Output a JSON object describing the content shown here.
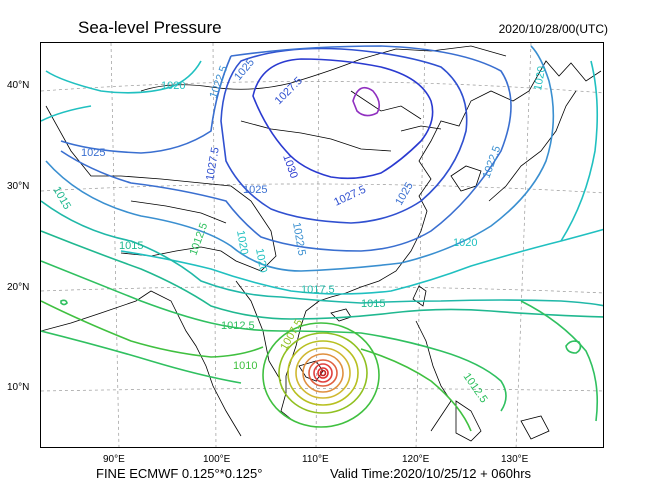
{
  "header": {
    "title": "Sea-level Pressure",
    "datetime": "2020/10/28/00(UTC)"
  },
  "axes": {
    "lat_ticks": [
      "40°N",
      "30°N",
      "20°N",
      "10°N"
    ],
    "lon_ticks": [
      "90°E",
      "100°E",
      "110°E",
      "120°E",
      "130°E"
    ]
  },
  "footer": {
    "model": "FINE ECMWF 0.125°*0.125°",
    "valid_time": "Valid Time:2020/10/25/12 + 060hrs"
  },
  "contour_labels": [
    {
      "text": "1020",
      "color": "#20c0c0"
    },
    {
      "text": "1022.5",
      "color": "#3a8fd0"
    },
    {
      "text": "1025",
      "color": "#3a6fd0"
    },
    {
      "text": "1027.5",
      "color": "#3050d0"
    },
    {
      "text": "1030",
      "color": "#2a3ad0"
    },
    {
      "text": "1025",
      "color": "#3a6fd0"
    },
    {
      "text": "1027.5",
      "color": "#3050d0"
    },
    {
      "text": "1027.5",
      "color": "#3050d0"
    },
    {
      "text": "1025",
      "color": "#3a6fd0"
    },
    {
      "text": "1015",
      "color": "#20b890"
    },
    {
      "text": "1015",
      "color": "#20b890"
    },
    {
      "text": "1012.5",
      "color": "#30c060"
    },
    {
      "text": "1020",
      "color": "#20c0c0"
    },
    {
      "text": "1020",
      "color": "#20c0c0"
    },
    {
      "text": "1022.5",
      "color": "#3a8fd0"
    },
    {
      "text": "1025",
      "color": "#3a6fd0"
    },
    {
      "text": "1022.5",
      "color": "#3a8fd0"
    },
    {
      "text": "1020",
      "color": "#20c0c0"
    },
    {
      "text": "1020",
      "color": "#20c0c0"
    },
    {
      "text": "1017.5",
      "color": "#20b8a8"
    },
    {
      "text": "1015",
      "color": "#20b890"
    },
    {
      "text": "1012.5",
      "color": "#30c060"
    },
    {
      "text": "1010",
      "color": "#40c040"
    },
    {
      "text": "1007.5",
      "color": "#90c020"
    },
    {
      "text": "1012.5",
      "color": "#30c060"
    },
    {
      "text": "1020",
      "color": "#20c0c0"
    }
  ],
  "colors": {
    "isobar_high": "#2a3ad0",
    "isobar_center": "#9030c0",
    "isobar_low": "#40c040",
    "typhoon_core": "#e03030",
    "coast": "#000000",
    "grid": "#888888"
  }
}
